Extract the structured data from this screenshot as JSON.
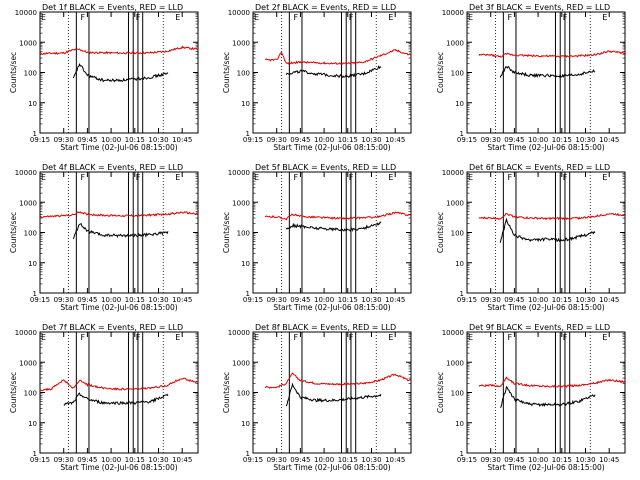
{
  "figure": {
    "xlabel": "Start Time (02-Jul-06 08:15:00)",
    "ylabel": "Counts/sec",
    "x_ticks": [
      "09:15",
      "09:30",
      "09:45",
      "10:00",
      "10:15",
      "10:30",
      "10:45"
    ],
    "y_ticks": [
      "1",
      "10",
      "100",
      "1000",
      "10000"
    ],
    "colors": {
      "events": "#000000",
      "lld": "#e00000",
      "axes": "#000000"
    }
  },
  "chart_data": [
    {
      "type": "line",
      "title": "Det 1f BLACK = Events, RED = LLD",
      "xlim": [
        "09:15",
        "10:55"
      ],
      "ylim": [
        1,
        10000
      ],
      "yscale": "log",
      "x": [
        "09:15",
        "09:22",
        "09:30",
        "09:36",
        "09:40",
        "09:45",
        "09:55",
        "10:05",
        "10:15",
        "10:25",
        "10:35",
        "10:45",
        "10:53"
      ],
      "series": [
        {
          "name": "LLD",
          "values": [
            420,
            430,
            440,
            560,
            580,
            460,
            450,
            440,
            440,
            450,
            500,
            680,
            600
          ]
        },
        {
          "name": "Events",
          "values": [
            null,
            null,
            null,
            60,
            190,
            80,
            55,
            55,
            60,
            70,
            90,
            null,
            null
          ]
        }
      ],
      "events_range": [
        "09:36",
        "10:36"
      ],
      "markers": [
        {
          "label": "E",
          "x": "09:15"
        },
        {
          "label": "F",
          "x": "09:40"
        },
        {
          "label": "F",
          "x": "10:15"
        },
        {
          "label": "E",
          "x": "10:40"
        }
      ],
      "vlines_solid": [
        "09:38",
        "09:46",
        "10:11",
        "10:14",
        "10:17",
        "10:20"
      ],
      "vlines_dotted": [
        "09:33",
        "10:33"
      ]
    },
    {
      "type": "line",
      "title": "Det 2f BLACK = Events, RED = LLD",
      "xlim": [
        "09:15",
        "10:55"
      ],
      "ylim": [
        1,
        10000
      ],
      "yscale": "log",
      "x": [
        "09:15",
        "09:22",
        "09:30",
        "09:33",
        "09:36",
        "09:45",
        "09:55",
        "10:05",
        "10:15",
        "10:25",
        "10:35",
        "10:45",
        "10:53"
      ],
      "series": [
        {
          "name": "LLD",
          "values": [
            null,
            null,
            260,
            480,
            200,
            220,
            210,
            200,
            200,
            220,
            350,
            550,
            400
          ]
        },
        {
          "name": "Events",
          "values": [
            null,
            null,
            null,
            null,
            90,
            110,
            90,
            80,
            75,
            90,
            150,
            null,
            null
          ]
        }
      ],
      "events_range": [
        "09:36",
        "10:36"
      ],
      "markers": [
        {
          "label": "E",
          "x": "09:15"
        },
        {
          "label": "F",
          "x": "09:40"
        },
        {
          "label": "F",
          "x": "10:15"
        },
        {
          "label": "E",
          "x": "10:40"
        }
      ],
      "vlines_solid": [
        "09:38",
        "09:46",
        "10:11",
        "10:14",
        "10:17",
        "10:20"
      ],
      "vlines_dotted": [
        "09:33",
        "10:33"
      ]
    },
    {
      "type": "line",
      "title": "Det 3f BLACK = Events, RED = LLD",
      "xlim": [
        "09:15",
        "10:55"
      ],
      "ylim": [
        1,
        10000
      ],
      "yscale": "log",
      "x": [
        "09:15",
        "09:22",
        "09:30",
        "09:36",
        "09:40",
        "09:45",
        "09:55",
        "10:05",
        "10:15",
        "10:25",
        "10:35",
        "10:45",
        "10:53"
      ],
      "series": [
        {
          "name": "LLD",
          "values": [
            null,
            null,
            380,
            330,
            410,
            380,
            360,
            350,
            340,
            350,
            380,
            500,
            450
          ]
        },
        {
          "name": "Events",
          "values": [
            null,
            null,
            null,
            70,
            160,
            100,
            80,
            80,
            75,
            85,
            110,
            null,
            null
          ]
        }
      ],
      "events_range": [
        "09:36",
        "10:36"
      ],
      "markers": [
        {
          "label": "E",
          "x": "09:15"
        },
        {
          "label": "F",
          "x": "09:40"
        },
        {
          "label": "F",
          "x": "10:15"
        },
        {
          "label": "E",
          "x": "10:40"
        }
      ],
      "vlines_solid": [
        "09:38",
        "09:46",
        "10:11",
        "10:14",
        "10:17",
        "10:20"
      ],
      "vlines_dotted": [
        "09:33",
        "10:33"
      ]
    },
    {
      "type": "line",
      "title": "Det 4f BLACK = Events, RED = LLD",
      "xlim": [
        "09:15",
        "10:55"
      ],
      "ylim": [
        1,
        10000
      ],
      "yscale": "log",
      "x": [
        "09:15",
        "09:22",
        "09:30",
        "09:36",
        "09:40",
        "09:45",
        "09:55",
        "10:05",
        "10:15",
        "10:25",
        "10:35",
        "10:45",
        "10:53"
      ],
      "series": [
        {
          "name": "LLD",
          "values": [
            330,
            340,
            360,
            380,
            480,
            400,
            370,
            360,
            360,
            380,
            400,
            460,
            420
          ]
        },
        {
          "name": "Events",
          "values": [
            null,
            null,
            null,
            60,
            200,
            110,
            80,
            80,
            80,
            85,
            100,
            null,
            null
          ]
        }
      ],
      "events_range": [
        "09:36",
        "10:36"
      ],
      "markers": [
        {
          "label": "E",
          "x": "09:15"
        },
        {
          "label": "F",
          "x": "09:40"
        },
        {
          "label": "F",
          "x": "10:15"
        },
        {
          "label": "E",
          "x": "10:40"
        }
      ],
      "vlines_solid": [
        "09:38",
        "09:46",
        "10:11",
        "10:14",
        "10:17",
        "10:20"
      ],
      "vlines_dotted": [
        "09:33",
        "10:33"
      ]
    },
    {
      "type": "line",
      "title": "Det 5f BLACK = Events, RED = LLD",
      "xlim": [
        "09:15",
        "10:55"
      ],
      "ylim": [
        1,
        10000
      ],
      "yscale": "log",
      "x": [
        "09:15",
        "09:22",
        "09:30",
        "09:36",
        "09:40",
        "09:45",
        "09:55",
        "10:05",
        "10:15",
        "10:25",
        "10:35",
        "10:45",
        "10:53"
      ],
      "series": [
        {
          "name": "LLD",
          "values": [
            null,
            null,
            330,
            280,
            400,
            340,
            320,
            300,
            290,
            310,
            330,
            460,
            380
          ]
        },
        {
          "name": "Events",
          "values": [
            null,
            null,
            null,
            130,
            170,
            160,
            140,
            130,
            120,
            140,
            200,
            null,
            null
          ]
        }
      ],
      "events_range": [
        "09:36",
        "10:36"
      ],
      "markers": [
        {
          "label": "E",
          "x": "09:15"
        },
        {
          "label": "F",
          "x": "09:40"
        },
        {
          "label": "F",
          "x": "10:15"
        },
        {
          "label": "E",
          "x": "10:40"
        }
      ],
      "vlines_solid": [
        "09:38",
        "09:46",
        "10:11",
        "10:14",
        "10:17",
        "10:20"
      ],
      "vlines_dotted": [
        "09:33",
        "10:33"
      ]
    },
    {
      "type": "line",
      "title": "Det 6f BLACK = Events, RED = LLD",
      "xlim": [
        "09:15",
        "10:55"
      ],
      "ylim": [
        1,
        10000
      ],
      "yscale": "log",
      "x": [
        "09:15",
        "09:22",
        "09:30",
        "09:36",
        "09:40",
        "09:45",
        "09:55",
        "10:05",
        "10:15",
        "10:25",
        "10:35",
        "10:45",
        "10:53"
      ],
      "series": [
        {
          "name": "LLD",
          "values": [
            null,
            null,
            300,
            290,
            420,
            330,
            300,
            290,
            290,
            300,
            330,
            420,
            380
          ]
        },
        {
          "name": "Events",
          "values": [
            null,
            null,
            null,
            50,
            250,
            80,
            55,
            60,
            55,
            70,
            100,
            null,
            null
          ]
        }
      ],
      "events_range": [
        "09:36",
        "10:36"
      ],
      "markers": [
        {
          "label": "E",
          "x": "09:15"
        },
        {
          "label": "F",
          "x": "09:40"
        },
        {
          "label": "F",
          "x": "10:15"
        },
        {
          "label": "E",
          "x": "10:40"
        }
      ],
      "vlines_solid": [
        "09:38",
        "09:46",
        "10:11",
        "10:14",
        "10:17",
        "10:20"
      ],
      "vlines_dotted": [
        "09:33",
        "10:33"
      ]
    },
    {
      "type": "line",
      "title": "Det 7f BLACK = Events, RED = LLD",
      "xlim": [
        "09:15",
        "10:55"
      ],
      "ylim": [
        1,
        10000
      ],
      "yscale": "log",
      "x": [
        "09:15",
        "09:22",
        "09:30",
        "09:36",
        "09:40",
        "09:45",
        "09:55",
        "10:05",
        "10:15",
        "10:25",
        "10:35",
        "10:45",
        "10:53"
      ],
      "series": [
        {
          "name": "LLD",
          "values": [
            120,
            130,
            260,
            140,
            250,
            180,
            140,
            130,
            130,
            140,
            170,
            300,
            220
          ]
        },
        {
          "name": "Events",
          "values": [
            null,
            null,
            40,
            45,
            90,
            60,
            45,
            45,
            45,
            50,
            80,
            null,
            null
          ]
        }
      ],
      "events_range": [
        "09:30",
        "10:36"
      ],
      "markers": [
        {
          "label": "E",
          "x": "09:15"
        },
        {
          "label": "F",
          "x": "09:40"
        },
        {
          "label": "F",
          "x": "10:15"
        },
        {
          "label": "E",
          "x": "10:40"
        }
      ],
      "vlines_solid": [
        "09:38",
        "09:46",
        "10:11",
        "10:14",
        "10:17",
        "10:20"
      ],
      "vlines_dotted": [
        "09:33",
        "10:33"
      ]
    },
    {
      "type": "line",
      "title": "Det 8f BLACK = Events, RED = LLD",
      "xlim": [
        "09:15",
        "10:55"
      ],
      "ylim": [
        1,
        10000
      ],
      "yscale": "log",
      "x": [
        "09:15",
        "09:22",
        "09:30",
        "09:36",
        "09:40",
        "09:45",
        "09:55",
        "10:05",
        "10:15",
        "10:25",
        "10:35",
        "10:45",
        "10:53"
      ],
      "series": [
        {
          "name": "LLD",
          "values": [
            null,
            null,
            150,
            200,
            420,
            250,
            200,
            190,
            190,
            200,
            250,
            400,
            260
          ]
        },
        {
          "name": "Events",
          "values": [
            null,
            null,
            null,
            35,
            180,
            70,
            55,
            55,
            60,
            70,
            80,
            null,
            null
          ]
        }
      ],
      "events_range": [
        "09:36",
        "10:36"
      ],
      "markers": [
        {
          "label": "E",
          "x": "09:15"
        },
        {
          "label": "F",
          "x": "09:40"
        },
        {
          "label": "F",
          "x": "10:15"
        },
        {
          "label": "E",
          "x": "10:40"
        }
      ],
      "vlines_solid": [
        "09:38",
        "09:46",
        "10:11",
        "10:14",
        "10:17",
        "10:20"
      ],
      "vlines_dotted": [
        "09:33",
        "10:33"
      ]
    },
    {
      "type": "line",
      "title": "Det 9f BLACK = Events, RED = LLD",
      "xlim": [
        "09:15",
        "10:55"
      ],
      "ylim": [
        1,
        10000
      ],
      "yscale": "log",
      "x": [
        "09:15",
        "09:22",
        "09:30",
        "09:36",
        "09:40",
        "09:45",
        "09:55",
        "10:05",
        "10:15",
        "10:25",
        "10:35",
        "10:45",
        "10:53"
      ],
      "series": [
        {
          "name": "LLD",
          "values": [
            null,
            null,
            170,
            160,
            300,
            200,
            170,
            160,
            160,
            170,
            200,
            260,
            230
          ]
        },
        {
          "name": "Events",
          "values": [
            null,
            null,
            null,
            30,
            150,
            60,
            40,
            40,
            40,
            50,
            80,
            null,
            null
          ]
        }
      ],
      "events_range": [
        "09:36",
        "10:36"
      ],
      "markers": [
        {
          "label": "E",
          "x": "09:15"
        },
        {
          "label": "F",
          "x": "09:40"
        },
        {
          "label": "F",
          "x": "10:15"
        },
        {
          "label": "E",
          "x": "10:40"
        }
      ],
      "vlines_solid": [
        "09:38",
        "09:46",
        "10:11",
        "10:14",
        "10:17",
        "10:20"
      ],
      "vlines_dotted": [
        "09:33",
        "10:33"
      ]
    }
  ]
}
